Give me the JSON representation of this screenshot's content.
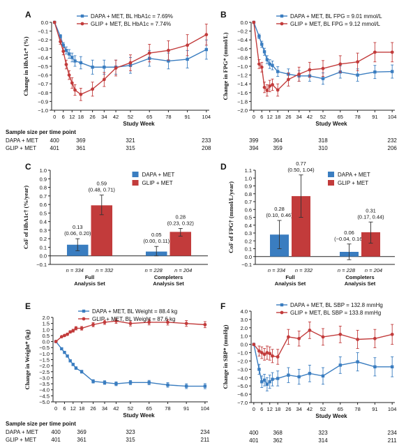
{
  "colors": {
    "dapa": "#3a7dc0",
    "glip": "#c23b3b",
    "axis": "#222222"
  },
  "sample_title": "Sample size per time point",
  "panels": [
    {
      "letter": "A",
      "type": "line",
      "ylabel": "Change in HbA1c* (%)",
      "xlabel": "Study Week",
      "ylim": [
        -1.0,
        0.0
      ],
      "yticks": [
        0.0,
        -0.1,
        -0.2,
        -0.3,
        -0.4,
        -0.5,
        -0.6,
        -0.7,
        -0.8,
        -0.9,
        -1.0
      ],
      "ytick_decimals": 1,
      "xticks": [
        0,
        6,
        12,
        18,
        26,
        34,
        42,
        52,
        65,
        78,
        91,
        104
      ],
      "series": [
        {
          "name": "DAPA + MET, BL HbA1c = 7.69%",
          "color": "dapa",
          "x": [
            0,
            4,
            6,
            8,
            10,
            12,
            14,
            18,
            26,
            34,
            42,
            52,
            65,
            78,
            91,
            104
          ],
          "y": [
            0,
            -0.16,
            -0.26,
            -0.32,
            -0.36,
            -0.4,
            -0.44,
            -0.46,
            -0.51,
            -0.51,
            -0.51,
            -0.49,
            -0.41,
            -0.44,
            -0.42,
            -0.31
          ],
          "err": [
            0,
            0.02,
            0.03,
            0.04,
            0.05,
            0.05,
            0.06,
            0.07,
            0.08,
            0.08,
            0.08,
            0.09,
            0.09,
            0.09,
            0.1,
            0.11
          ]
        },
        {
          "name": "GLIP + MET, BL HbA1c = 7.74%",
          "color": "glip",
          "x": [
            0,
            4,
            6,
            8,
            10,
            12,
            14,
            18,
            26,
            34,
            42,
            52,
            65,
            78,
            91,
            104
          ],
          "y": [
            0,
            -0.22,
            -0.33,
            -0.48,
            -0.6,
            -0.69,
            -0.77,
            -0.82,
            -0.76,
            -0.65,
            -0.52,
            -0.46,
            -0.35,
            -0.32,
            -0.26,
            -0.14
          ],
          "err": [
            0,
            0.03,
            0.04,
            0.05,
            0.05,
            0.06,
            0.06,
            0.07,
            0.08,
            0.08,
            0.09,
            0.09,
            0.1,
            0.11,
            0.12,
            0.12
          ]
        }
      ],
      "samples": {
        "labels": [
          "DAPA + MET",
          "GLIP + MET"
        ],
        "weeks": [
          0,
          18,
          52,
          104
        ],
        "rows": [
          [
            "400",
            "369",
            "321",
            "233"
          ],
          [
            "401",
            "361",
            "315",
            "208"
          ]
        ]
      }
    },
    {
      "letter": "B",
      "type": "line",
      "ylabel": "Change in FPG* (mmol/L)",
      "xlabel": "Study Week",
      "ylim": [
        -2.0,
        0.0
      ],
      "yticks": [
        0.0,
        -0.2,
        -0.4,
        -0.6,
        -0.8,
        -1.0,
        -1.2,
        -1.4,
        -1.6,
        -1.8,
        -2.0
      ],
      "ytick_decimals": 1,
      "xticks": [
        0,
        6,
        12,
        18,
        26,
        34,
        42,
        52,
        65,
        78,
        91,
        104
      ],
      "series": [
        {
          "name": "DAPA + MET, BL FPG = 9.01 mmol/L",
          "color": "dapa",
          "x": [
            0,
            4,
            6,
            8,
            10,
            12,
            14,
            18,
            26,
            34,
            42,
            52,
            65,
            78,
            91,
            104
          ],
          "y": [
            0,
            -0.32,
            -0.5,
            -0.67,
            -0.85,
            -0.95,
            -0.98,
            -1.12,
            -1.18,
            -1.22,
            -1.22,
            -1.28,
            -1.13,
            -1.2,
            -1.13,
            -1.12
          ],
          "err": [
            0,
            0.05,
            0.07,
            0.08,
            0.09,
            0.1,
            0.1,
            0.11,
            0.12,
            0.12,
            0.12,
            0.13,
            0.14,
            0.14,
            0.15,
            0.15
          ]
        },
        {
          "name": "GLIP + MET, BL FPG = 9.12 mmol/L",
          "color": "glip",
          "x": [
            0,
            4,
            6,
            8,
            10,
            12,
            14,
            18,
            26,
            34,
            42,
            52,
            65,
            78,
            91,
            104
          ],
          "y": [
            0,
            -0.95,
            -1.02,
            -1.48,
            -1.55,
            -1.45,
            -1.42,
            -1.54,
            -1.3,
            -1.18,
            -1.08,
            -1.05,
            -0.95,
            -0.9,
            -0.68,
            -0.68
          ],
          "err": [
            0,
            0.1,
            0.11,
            0.12,
            0.13,
            0.13,
            0.13,
            0.14,
            0.15,
            0.16,
            0.17,
            0.18,
            0.19,
            0.2,
            0.22,
            0.22
          ]
        }
      ],
      "samples": {
        "labels": [
          "",
          ""
        ],
        "weeks": [
          0,
          18,
          52,
          104
        ],
        "rows": [
          [
            "399",
            "364",
            "318",
            "232"
          ],
          [
            "394",
            "359",
            "310",
            "206"
          ]
        ]
      }
    },
    {
      "letter": "C",
      "type": "bar",
      "ylabel": "CoF of HbA1c† (%/year)",
      "ylim": [
        -0.1,
        1.0
      ],
      "yticks": [
        1.0,
        0.9,
        0.8,
        0.7,
        0.6,
        0.5,
        0.4,
        0.3,
        0.2,
        0.1,
        0.0,
        -0.1
      ],
      "ytick_decimals": 1,
      "legend": [
        "DAPA + MET",
        "GLIP + MET"
      ],
      "groups": [
        {
          "name": "Full\nAnalysis Set",
          "n_text": [
            "n = 334",
            "n = 332"
          ],
          "values": [
            0.13,
            0.59
          ],
          "lo": [
            0.06,
            0.48
          ],
          "hi": [
            0.2,
            0.71
          ],
          "labels": [
            [
              "0.13",
              "(0.06, 0.20)"
            ],
            [
              "0.59",
              "(0.48, 0.71)"
            ]
          ]
        },
        {
          "name": "Completers\nAnalysis Set",
          "n_text": [
            "n = 228",
            "n = 204"
          ],
          "values": [
            0.05,
            0.28
          ],
          "lo": [
            0.0,
            0.23
          ],
          "hi": [
            0.11,
            0.32
          ],
          "labels": [
            [
              "0.05",
              "(0.00, 0.11)"
            ],
            [
              "0.28",
              "(0.23, 0.32)"
            ]
          ]
        }
      ]
    },
    {
      "letter": "D",
      "type": "bar",
      "ylabel": "CoF of FPG† (mmol/L/year)",
      "ylim": [
        -0.1,
        1.1
      ],
      "yticks": [
        1.1,
        1.0,
        0.9,
        0.8,
        0.7,
        0.6,
        0.5,
        0.4,
        0.3,
        0.2,
        0.1,
        0.0,
        -0.1
      ],
      "ytick_decimals": 1,
      "legend": [
        "DAPA + MET",
        "GLIP + MET"
      ],
      "groups": [
        {
          "name": "Full\nAnalysis Set",
          "n_text": [
            "n = 334",
            "n = 332"
          ],
          "values": [
            0.28,
            0.77
          ],
          "lo": [
            0.1,
            0.5
          ],
          "hi": [
            0.46,
            1.04
          ],
          "labels": [
            [
              "0.28",
              "(0.10, 0.46)"
            ],
            [
              "0.77",
              "(0.50, 1.04)"
            ]
          ]
        },
        {
          "name": "Completers\nAnalysis Set",
          "n_text": [
            "n = 228",
            "n = 204"
          ],
          "values": [
            0.06,
            0.31
          ],
          "lo": [
            -0.04,
            0.17
          ],
          "hi": [
            0.16,
            0.44
          ],
          "labels": [
            [
              "0.06",
              "(−0.04, 0.16)"
            ],
            [
              "0.31",
              "(0.17, 0.44)"
            ]
          ]
        }
      ]
    },
    {
      "letter": "E",
      "type": "line",
      "ylabel": "Change in Weight* (kg)",
      "xlabel": "Study Week",
      "ylim": [
        -5.0,
        2.0
      ],
      "yticks": [
        2.0,
        1.5,
        1.0,
        0.5,
        0.0,
        -0.5,
        -1.0,
        -1.5,
        -2.0,
        -2.5,
        -3.0,
        -3.5,
        -4.0,
        -4.5,
        -5.0
      ],
      "ytick_decimals": 1,
      "xticks": [
        0,
        6,
        12,
        18,
        26,
        34,
        42,
        52,
        65,
        78,
        91,
        104
      ],
      "series": [
        {
          "name": "DAPA + MET, BL Weight = 88.4 kg",
          "color": "dapa",
          "x": [
            0,
            4,
            6,
            8,
            10,
            12,
            14,
            18,
            26,
            34,
            42,
            52,
            65,
            78,
            91,
            104
          ],
          "y": [
            0,
            -0.6,
            -0.9,
            -1.2,
            -1.6,
            -1.9,
            -2.2,
            -2.5,
            -3.3,
            -3.4,
            -3.5,
            -3.4,
            -3.4,
            -3.6,
            -3.7,
            -3.7
          ],
          "err": [
            0,
            0.05,
            0.07,
            0.08,
            0.09,
            0.1,
            0.11,
            0.12,
            0.14,
            0.15,
            0.16,
            0.17,
            0.18,
            0.19,
            0.2,
            0.21
          ]
        },
        {
          "name": "GLIP + MET, BL Weight = 87.6 kg",
          "color": "glip",
          "x": [
            0,
            4,
            6,
            8,
            10,
            12,
            14,
            18,
            26,
            34,
            42,
            52,
            65,
            78,
            91,
            104
          ],
          "y": [
            0,
            0.4,
            0.5,
            0.6,
            0.8,
            0.9,
            1.1,
            1.1,
            1.4,
            1.6,
            1.7,
            1.5,
            1.6,
            1.6,
            1.5,
            1.4
          ],
          "err": [
            0,
            0.06,
            0.08,
            0.09,
            0.1,
            0.12,
            0.14,
            0.15,
            0.17,
            0.18,
            0.2,
            0.21,
            0.22,
            0.23,
            0.24,
            0.25
          ]
        }
      ],
      "samples": {
        "labels": [
          "DAPA + MET",
          "GLIP + MET"
        ],
        "weeks": [
          0,
          18,
          52,
          104
        ],
        "rows": [
          [
            "400",
            "369",
            "323",
            "234"
          ],
          [
            "401",
            "361",
            "315",
            "211"
          ]
        ]
      }
    },
    {
      "letter": "F",
      "type": "line",
      "ylabel": "Change in SBP* (mmHg)",
      "xlabel": "Study Week",
      "ylim": [
        -7.0,
        4.0
      ],
      "yticks": [
        4.0,
        3.0,
        2.0,
        1.0,
        0.0,
        -1.0,
        -2.0,
        -3.0,
        -4.0,
        -5.0,
        -6.0,
        -7.0
      ],
      "ytick_decimals": 1,
      "xticks": [
        0,
        6,
        12,
        18,
        26,
        34,
        42,
        52,
        65,
        78,
        91,
        104
      ],
      "series": [
        {
          "name": "DAPA + MET, BL SBP = 132.8 mmHg",
          "color": "dapa",
          "x": [
            0,
            4,
            6,
            8,
            10,
            12,
            14,
            18,
            26,
            34,
            42,
            52,
            65,
            78,
            91,
            104
          ],
          "y": [
            0,
            -3.0,
            -4.5,
            -4.3,
            -4.8,
            -4.5,
            -4.2,
            -4.1,
            -3.7,
            -3.9,
            -3.5,
            -3.8,
            -2.5,
            -2.1,
            -2.7,
            -2.7
          ],
          "err": [
            0,
            0.6,
            0.7,
            0.7,
            0.8,
            0.8,
            0.8,
            0.9,
            0.9,
            0.9,
            1.0,
            1.0,
            1.0,
            1.1,
            1.1,
            1.2
          ]
        },
        {
          "name": "GLIP + MET, BL SBP = 133.8 mmHg",
          "color": "glip",
          "x": [
            0,
            4,
            6,
            8,
            10,
            12,
            14,
            18,
            26,
            34,
            42,
            52,
            65,
            78,
            91,
            104
          ],
          "y": [
            0,
            -0.8,
            -1.0,
            -1.2,
            -1.0,
            -1.1,
            -1.4,
            -1.5,
            0.9,
            0.7,
            1.7,
            0.9,
            1.2,
            0.6,
            0.7,
            1.2
          ],
          "err": [
            0,
            0.6,
            0.7,
            0.7,
            0.8,
            0.8,
            0.8,
            0.9,
            0.9,
            0.9,
            1.0,
            1.0,
            1.0,
            1.1,
            1.1,
            1.2
          ]
        }
      ],
      "samples": {
        "labels": [
          "",
          ""
        ],
        "weeks": [
          0,
          18,
          52,
          104
        ],
        "rows": [
          [
            "400",
            "368",
            "323",
            "234"
          ],
          [
            "401",
            "362",
            "314",
            "211"
          ]
        ]
      }
    }
  ]
}
